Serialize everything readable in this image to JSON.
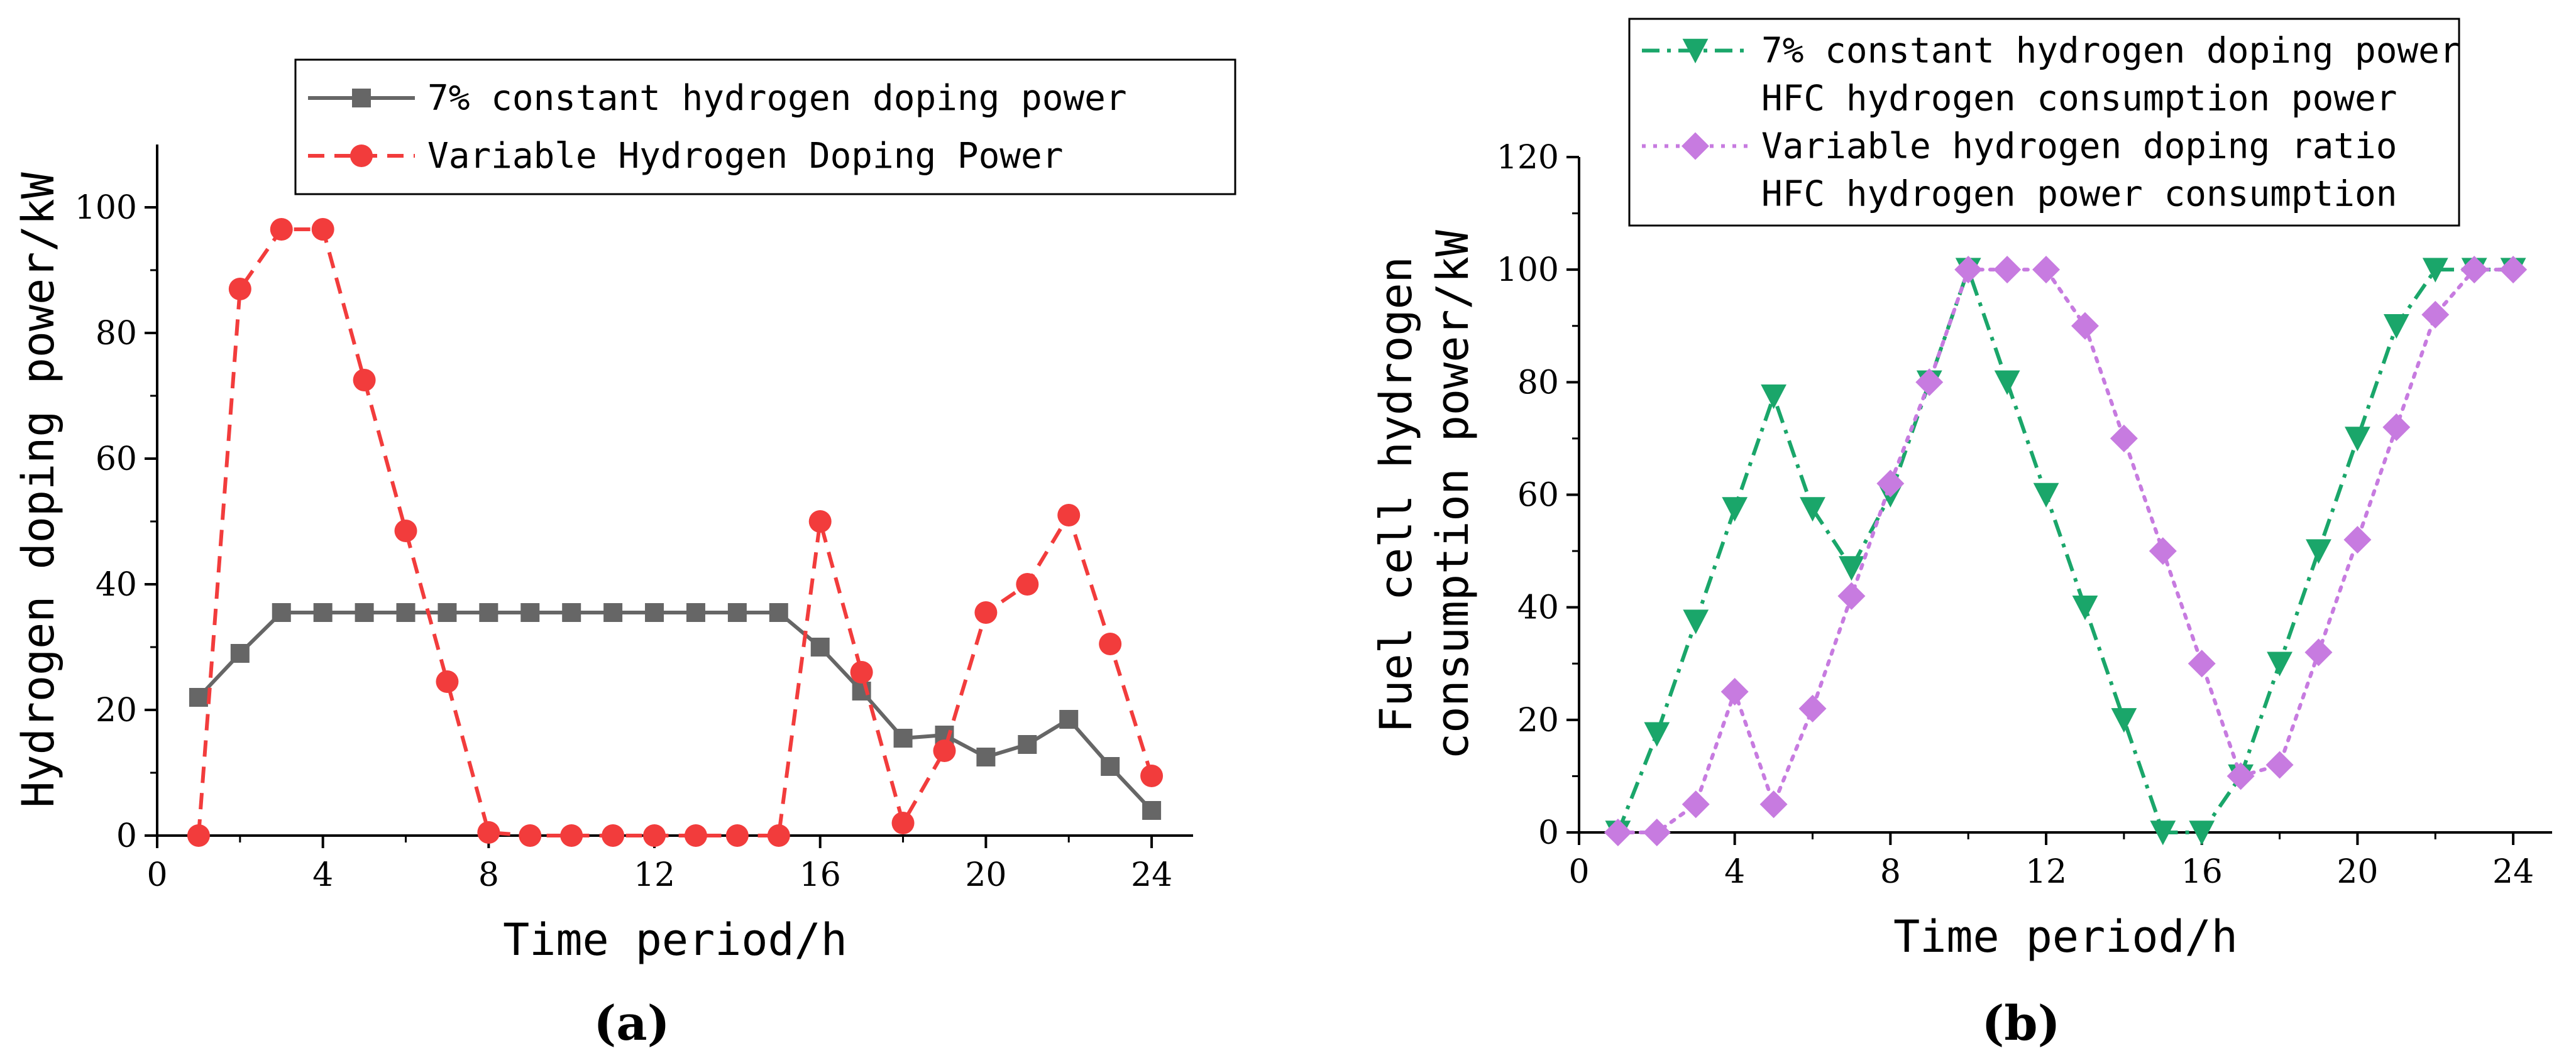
{
  "chart_data": [
    {
      "type": "line",
      "panel": "a",
      "panel_label": "(a)",
      "xlabel": "Time period/h",
      "ylabel": "Hydrogen doping power/kW",
      "xlim": [
        0,
        25
      ],
      "ylim": [
        0,
        110
      ],
      "xticks": [
        0,
        4,
        8,
        12,
        16,
        20,
        24
      ],
      "yticks": [
        0,
        20,
        40,
        60,
        80,
        100
      ],
      "grid": false,
      "legend_position": "top",
      "x": [
        1,
        2,
        3,
        4,
        5,
        6,
        7,
        8,
        9,
        10,
        11,
        12,
        13,
        14,
        15,
        16,
        17,
        18,
        19,
        20,
        21,
        22,
        23,
        24
      ],
      "series": [
        {
          "name": "7% constant hydrogen doping power",
          "color": "#666666",
          "line_style": "solid",
          "marker": "square",
          "values": [
            22,
            29,
            35.5,
            35.5,
            35.5,
            35.5,
            35.5,
            35.5,
            35.5,
            35.5,
            35.5,
            35.5,
            35.5,
            35.5,
            35.5,
            30,
            23,
            15.5,
            16,
            12.5,
            14.5,
            18.5,
            11,
            4
          ]
        },
        {
          "name": "Variable Hydrogen Doping Power",
          "color": "#f23c3c",
          "line_style": "dashed",
          "marker": "circle",
          "values": [
            0,
            87,
            96.5,
            96.5,
            72.5,
            48.5,
            24.5,
            0.5,
            0,
            0,
            0,
            0,
            0,
            0,
            0,
            50,
            26,
            2,
            13.5,
            35.5,
            40,
            51,
            30.5,
            9.5
          ]
        }
      ]
    },
    {
      "type": "line",
      "panel": "b",
      "panel_label": "(b)",
      "xlabel": "Time period/h",
      "ylabel": [
        "Fuel cell hydrogen",
        "consumption power/kW"
      ],
      "xlim": [
        0,
        25
      ],
      "ylim": [
        0,
        120
      ],
      "xticks": [
        0,
        4,
        8,
        12,
        16,
        20,
        24
      ],
      "yticks": [
        0,
        20,
        40,
        60,
        80,
        100,
        120
      ],
      "grid": false,
      "legend_position": "top",
      "x": [
        1,
        2,
        3,
        4,
        5,
        6,
        7,
        8,
        9,
        10,
        11,
        12,
        13,
        14,
        15,
        16,
        17,
        18,
        19,
        20,
        21,
        22,
        23,
        24
      ],
      "series": [
        {
          "name": [
            "7% constant hydrogen doping power",
            "HFC hydrogen consumption power"
          ],
          "color": "#1aa66a",
          "line_style": "dash-dot",
          "marker": "triangle-down",
          "values": [
            0,
            17.5,
            37.5,
            57.5,
            77.5,
            57.5,
            47,
            60,
            80,
            100,
            80,
            60,
            40,
            20,
            0,
            0,
            10,
            30,
            50,
            70,
            90,
            100,
            100,
            100
          ]
        },
        {
          "name": [
            "Variable hydrogen doping ratio",
            "HFC hydrogen power consumption"
          ],
          "color": "#c77be0",
          "line_style": "dotted",
          "marker": "diamond",
          "values": [
            0,
            0,
            5,
            25,
            5,
            22,
            42,
            62,
            80,
            100,
            100,
            100,
            90,
            70,
            50,
            30,
            10,
            12,
            32,
            52,
            72,
            92,
            100,
            100
          ]
        }
      ]
    }
  ]
}
